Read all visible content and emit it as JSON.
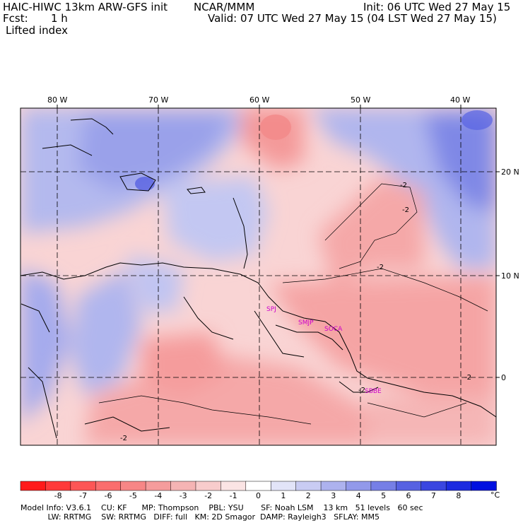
{
  "header": {
    "title": "HAIC-HIWC 13km ARW-GFS init",
    "org": "NCAR/MMM",
    "init": "Init: 06 UTC Wed 27 May 15",
    "fcst_label": "Fcst:",
    "fcst_value": "1 h",
    "valid": "Valid: 07 UTC Wed 27 May 15 (04 LST Wed 27 May 15)",
    "field": "Lifted index"
  },
  "map": {
    "lon_labels": [
      "80 W",
      "70 W",
      "60 W",
      "50 W",
      "40 W"
    ],
    "lat_labels": [
      "20 N",
      "10 N",
      "0"
    ],
    "stations": [
      "SPJ",
      "SMJP",
      "SOCA",
      "SBBE"
    ],
    "contour_labels": [
      "-2",
      "-2",
      "-2",
      "-2",
      "-2",
      "-2"
    ]
  },
  "colorbar": {
    "unit": "°C",
    "levels": [
      "-8",
      "-7",
      "-6",
      "-5",
      "-4",
      "-3",
      "-2",
      "-1",
      "0",
      "1",
      "2",
      "3",
      "4",
      "5",
      "6",
      "7",
      "8"
    ],
    "colors": [
      "#ff1a1a",
      "#ff3a3a",
      "#fd5656",
      "#fa6e6e",
      "#f78686",
      "#f59c9c",
      "#f5b4b4",
      "#f8cccc",
      "#fbe4e4",
      "#ffffff",
      "#e2e4f8",
      "#c9ccf3",
      "#adb2ee",
      "#9299ea",
      "#767fe6",
      "#5762e2",
      "#3a46e0",
      "#1c2be0",
      "#0010e0"
    ]
  },
  "footer": {
    "line1": "Model Info: V3.6.1    CU: KF      MP: Thompson    PBL: YSU       SF: Noah LSM    13 km   51 levels   60 sec",
    "line2": "           LW: RRTMG    SW: RRTMG   DIFF: full   KM: 2D Smagor  DAMP: Rayleigh3   SFLAY: MM5"
  }
}
